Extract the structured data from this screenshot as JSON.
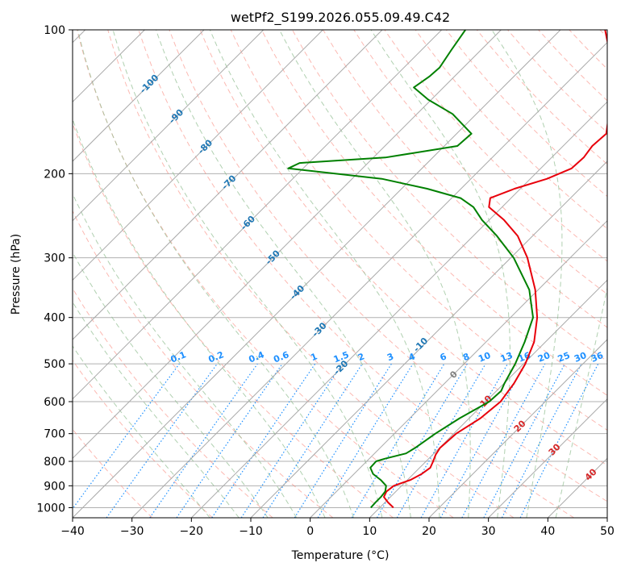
{
  "chart_data": {
    "type": "skew-t",
    "title": "wetPf2_S199.2026.055.09.49.C42",
    "xlabel": "Temperature (°C)",
    "ylabel": "Pressure (hPa)",
    "xlim": [
      -40,
      50
    ],
    "ylim_hpa": [
      1050,
      100
    ],
    "x_ticks": [
      -40,
      -30,
      -20,
      -10,
      0,
      10,
      20,
      30,
      40,
      50
    ],
    "y_ticks": [
      1000,
      900,
      800,
      700,
      600,
      500,
      400,
      300,
      200,
      100
    ],
    "colors": {
      "temperature": "#e8000b",
      "dewpoint": "#008000",
      "isotherm": "#a9a9a9",
      "dry_adiabat": "#fa8072",
      "moist_adiabat": "#8fbc8f",
      "mixing_ratio": "#1e90ff",
      "isotherm_label": "#1f77b4",
      "theta_label": "#d62728"
    },
    "series": [
      {
        "name": "Temperature",
        "points": [
          [
            1000,
            12.3
          ],
          [
            975,
            10.5
          ],
          [
            950,
            8.9
          ],
          [
            925,
            8.4
          ],
          [
            900,
            8.7
          ],
          [
            875,
            10.5
          ],
          [
            850,
            11.4
          ],
          [
            825,
            11.8
          ],
          [
            800,
            11.2
          ],
          [
            775,
            10.5
          ],
          [
            750,
            10.1
          ],
          [
            700,
            10.4
          ],
          [
            650,
            11.9
          ],
          [
            600,
            12.5
          ],
          [
            550,
            11.7
          ],
          [
            500,
            10.3
          ],
          [
            450,
            8.1
          ],
          [
            400,
            4.5
          ],
          [
            350,
            -0.5
          ],
          [
            300,
            -7.2
          ],
          [
            270,
            -12.5
          ],
          [
            250,
            -17.5
          ],
          [
            235,
            -22.2
          ],
          [
            225,
            -23.5
          ],
          [
            215,
            -21.0
          ],
          [
            205,
            -17.2
          ],
          [
            195,
            -14.8
          ],
          [
            185,
            -14.6
          ],
          [
            175,
            -15.1
          ],
          [
            165,
            -14.8
          ],
          [
            150,
            -17.7
          ],
          [
            140,
            -19.6
          ],
          [
            130,
            -22.5
          ],
          [
            120,
            -25.3
          ],
          [
            110,
            -28.5
          ],
          [
            100,
            -32.5
          ]
        ]
      },
      {
        "name": "Dewpoint",
        "points": [
          [
            1000,
            8.5
          ],
          [
            975,
            8.4
          ],
          [
            950,
            8.4
          ],
          [
            925,
            8.2
          ],
          [
            900,
            7.4
          ],
          [
            875,
            5.5
          ],
          [
            850,
            3.2
          ],
          [
            825,
            1.7
          ],
          [
            800,
            1.6
          ],
          [
            790,
            2.6
          ],
          [
            770,
            5.3
          ],
          [
            750,
            5.9
          ],
          [
            700,
            6.9
          ],
          [
            650,
            8.4
          ],
          [
            600,
            10.6
          ],
          [
            570,
            10.8
          ],
          [
            550,
            10.1
          ],
          [
            500,
            8.6
          ],
          [
            450,
            6.5
          ],
          [
            400,
            3.8
          ],
          [
            350,
            -1.5
          ],
          [
            300,
            -9.5
          ],
          [
            270,
            -16.0
          ],
          [
            250,
            -21.2
          ],
          [
            235,
            -24.8
          ],
          [
            225,
            -28.5
          ],
          [
            215,
            -35.7
          ],
          [
            205,
            -45.0
          ],
          [
            195,
            -62.5
          ],
          [
            190,
            -61.5
          ],
          [
            185,
            -48.0
          ],
          [
            175,
            -37.8
          ],
          [
            165,
            -37.5
          ],
          [
            150,
            -44.0
          ],
          [
            140,
            -50.5
          ],
          [
            132,
            -55.0
          ],
          [
            125,
            -54.2
          ],
          [
            120,
            -54.0
          ],
          [
            110,
            -55.0
          ],
          [
            100,
            -56.0
          ]
        ]
      }
    ],
    "isotherm_labels": [
      "-100",
      "-90",
      "-80",
      "-70",
      "-60",
      "-50",
      "-40",
      "-30",
      "-20",
      "-10",
      "0",
      "10",
      "20",
      "30",
      "40"
    ],
    "mixing_ratio_labels": [
      "0.1",
      "0.2",
      "0.4",
      "0.6",
      "1",
      "1.5",
      "2",
      "3",
      "4",
      "6",
      "8",
      "10",
      "13",
      "16",
      "20",
      "25",
      "30",
      "36"
    ]
  }
}
